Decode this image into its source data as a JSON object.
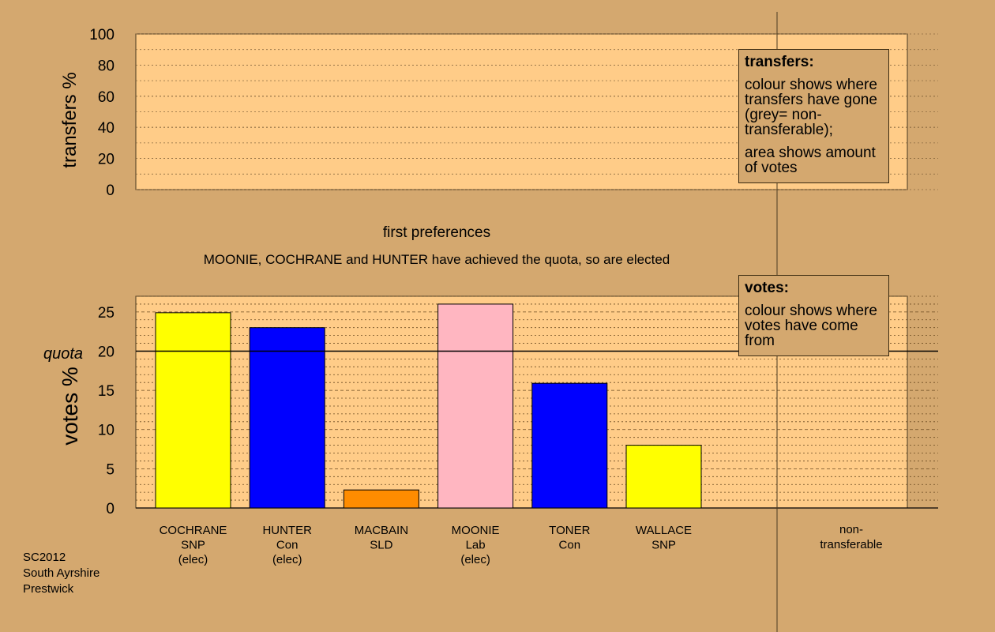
{
  "chart_data": [
    {
      "type": "bar",
      "panel": "transfers",
      "ylabel": "transfers %",
      "ylim": [
        0,
        100
      ],
      "yticks": [
        "0",
        "20",
        "40",
        "60",
        "80",
        "100"
      ],
      "categories": [],
      "values": []
    },
    {
      "type": "bar",
      "panel": "votes",
      "title": "first preferences",
      "subtitle": "MOONIE, COCHRANE and HUNTER have achieved the quota, so are elected",
      "ylabel": "votes %",
      "ylim": [
        0,
        27
      ],
      "yticks": [
        "0",
        "5",
        "10",
        "15",
        "20",
        "25"
      ],
      "quota": 20,
      "quota_label": "quota",
      "categories": [
        "COCHRANE\nSNP\n(elec)",
        "HUNTER\nCon\n(elec)",
        "MACBAIN\nSLD",
        "MOONIE\nLab\n(elec)",
        "TONER\nCon",
        "WALLACE\nSNP"
      ],
      "values": [
        24.9,
        23.0,
        2.3,
        26.0,
        15.9,
        8.0
      ],
      "colors": [
        "#FFFF00",
        "#0000FF",
        "#FF8C00",
        "#FFB6C1",
        "#0000FF",
        "#FFFF00"
      ],
      "nontransferable_label": "non-\ntransferable"
    }
  ],
  "legends": {
    "transfers": {
      "title": "transfers:",
      "text1": "colour shows where transfers have gone (grey= non-transferable);",
      "text2": "area shows amount of votes"
    },
    "votes": {
      "title": "votes:",
      "text1": "colour shows where votes have come from"
    }
  },
  "footer": {
    "line1": "SC2012",
    "line2": "South Ayrshire",
    "line3": "Prestwick"
  },
  "colors": {
    "background": "#D4A86F",
    "panel": "#FFCC88"
  }
}
